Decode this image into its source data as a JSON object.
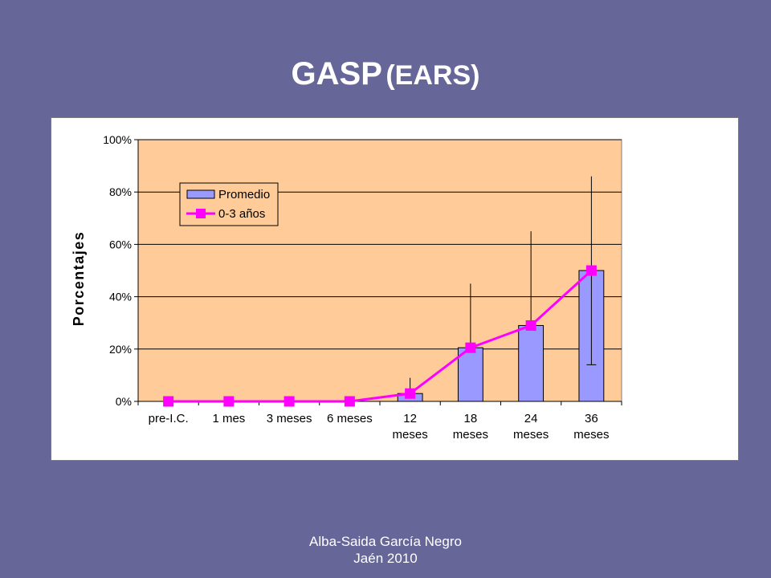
{
  "slide": {
    "title_main": "GASP",
    "title_sub": "(EARS)",
    "footer_line1": "Alba-Saida García Negro",
    "footer_line2": "Jaén 2010"
  },
  "chart_data": {
    "type": "bar",
    "categories": [
      [
        "pre-I.C."
      ],
      [
        "1 mes"
      ],
      [
        "3 meses"
      ],
      [
        "6 meses"
      ],
      [
        "12",
        "meses"
      ],
      [
        "18",
        "meses"
      ],
      [
        "24",
        "meses"
      ],
      [
        "36",
        "meses"
      ]
    ],
    "series": [
      {
        "name": "Promedio",
        "type": "bar",
        "values": [
          0,
          0,
          0,
          0,
          3,
          20.5,
          29,
          50
        ],
        "error_upper": [
          0,
          0,
          0,
          0,
          9,
          45,
          65,
          86
        ],
        "error_lower": [
          0,
          0,
          0,
          0,
          0,
          0,
          0,
          14
        ]
      },
      {
        "name": "0-3 años",
        "type": "line",
        "values": [
          0,
          0,
          0,
          0,
          3,
          20.5,
          29,
          50
        ]
      }
    ],
    "ylabel": "Porcentajes",
    "ylim": [
      0,
      100
    ],
    "yticks": [
      "0%",
      "20%",
      "40%",
      "60%",
      "80%",
      "100%"
    ],
    "grid": true,
    "legend_position": "top-left",
    "colors": {
      "plot_background": "#FFCC99",
      "bar_fill": "#9999FF",
      "line": "#FF00FF",
      "marker": "#FF00FF"
    }
  }
}
